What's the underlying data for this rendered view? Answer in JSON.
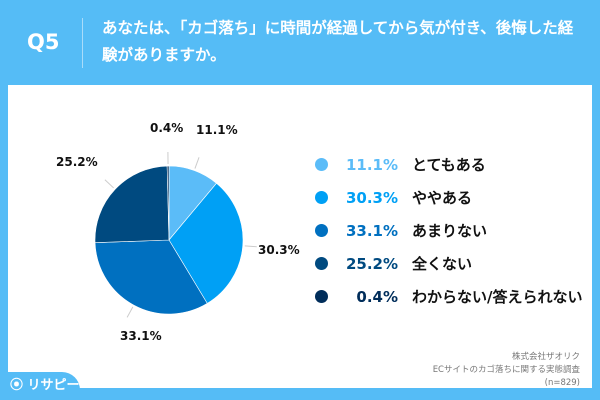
{
  "header": {
    "q_label": "Q5",
    "question": "あなたは、「カゴ落ち」に時間が経過してから気が付き、後悔した経験がありますか。"
  },
  "chart_data": {
    "type": "pie",
    "categories": [
      "とてもある",
      "ややある",
      "あまりない",
      "全くない",
      "わからない/答えられない"
    ],
    "values": [
      11.1,
      30.3,
      33.1,
      25.2,
      0.4
    ],
    "labels": [
      "11.1%",
      "30.3%",
      "33.1%",
      "25.2%",
      "0.4%"
    ],
    "colors": [
      "#5bbcf8",
      "#00a0f5",
      "#0070c0",
      "#004a80",
      "#002d5a"
    ],
    "legend_placement": "right"
  },
  "source": {
    "line1": "株式会社ザオリク",
    "line2": "ECサイトのカゴ落ちに関する実態調査",
    "line3": "(n=829)"
  },
  "logo": {
    "text": "リサピー"
  }
}
